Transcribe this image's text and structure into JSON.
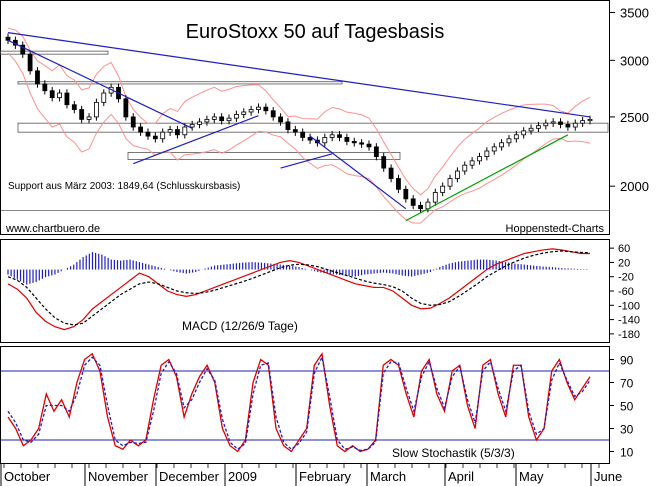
{
  "chart_data": [
    {
      "type": "candlestick",
      "title": "EuroStoxx 50 auf Tagesbasis",
      "watermark_left": "www.chartbuero.de",
      "watermark_right": "Hoppenstedt-Charts",
      "support_note": "Support aus März 2003: 1849,64 (Schlusskursbasis)",
      "support_level": 1849.64,
      "y_ticks": [
        2000,
        2500,
        3000,
        3500
      ],
      "y_tick_labels": [
        "2000",
        "2500",
        "3000",
        "3500"
      ],
      "ylim": [
        1720,
        3620
      ],
      "log_scale": true,
      "series_close_approx": [
        3200,
        3150,
        3060,
        2900,
        2780,
        2720,
        2660,
        2700,
        2600,
        2560,
        2480,
        2500,
        2620,
        2700,
        2750,
        2650,
        2500,
        2420,
        2380,
        2350,
        2330,
        2380,
        2400,
        2360,
        2420,
        2440,
        2460,
        2480,
        2500,
        2470,
        2490,
        2520,
        2540,
        2560,
        2580,
        2550,
        2500,
        2460,
        2400,
        2380,
        2340,
        2320,
        2300,
        2340,
        2360,
        2340,
        2310,
        2300,
        2290,
        2270,
        2200,
        2120,
        2050,
        1980,
        1920,
        1880,
        1860,
        1900,
        1960,
        2000,
        2050,
        2100,
        2140,
        2170,
        2200,
        2240,
        2270,
        2300,
        2330,
        2360,
        2390,
        2410,
        2430,
        2450,
        2460,
        2440,
        2420,
        2450,
        2470,
        2480
      ],
      "trendlines": [
        {
          "from": [
            0,
            3280
          ],
          "to": [
            79,
            2500
          ],
          "color": "#1f1fbf"
        },
        {
          "from": [
            0,
            3200
          ],
          "to": [
            25,
            2410
          ],
          "color": "#1f1fbf"
        },
        {
          "from": [
            17,
            2150
          ],
          "to": [
            34,
            2510
          ],
          "color": "#1f1fbf"
        },
        {
          "from": [
            37,
            2120
          ],
          "to": [
            44,
            2220
          ],
          "color": "#1f1fbf"
        },
        {
          "from": [
            41,
            2350
          ],
          "to": [
            54,
            1860
          ],
          "color": "#1f1fbf"
        },
        {
          "from": [
            54,
            1790
          ],
          "to": [
            76,
            2360
          ],
          "color": "#00a000"
        }
      ]
    },
    {
      "type": "line",
      "title": "MACD (12/26/9 Tage)",
      "y_ticks": [
        60,
        20,
        -20,
        -60,
        -100,
        -140,
        -180
      ],
      "y_tick_labels": [
        "60",
        "20",
        "-20",
        "-60",
        "-100",
        "-140",
        "-180"
      ],
      "ylim": [
        -200,
        80
      ],
      "series": [
        {
          "name": "MACD",
          "color": "#e00000",
          "values": [
            -40,
            -55,
            -80,
            -120,
            -145,
            -160,
            -168,
            -160,
            -140,
            -110,
            -90,
            -70,
            -50,
            -30,
            -10,
            -20,
            -40,
            -60,
            -70,
            -75,
            -70,
            -60,
            -50,
            -40,
            -30,
            -20,
            -10,
            0,
            10,
            20,
            25,
            20,
            10,
            0,
            -10,
            -20,
            -30,
            -40,
            -45,
            -50,
            -50,
            -60,
            -80,
            -100,
            -110,
            -108,
            -95,
            -80,
            -60,
            -40,
            -20,
            0,
            15,
            25,
            35,
            45,
            50,
            55,
            58,
            55,
            50,
            45,
            45
          ]
        },
        {
          "name": "Signal",
          "color": "#000000",
          "values": [
            -20,
            -30,
            -50,
            -80,
            -110,
            -135,
            -150,
            -155,
            -150,
            -130,
            -110,
            -90,
            -70,
            -55,
            -40,
            -35,
            -40,
            -50,
            -60,
            -65,
            -67,
            -64,
            -58,
            -50,
            -42,
            -34,
            -25,
            -15,
            -5,
            5,
            12,
            15,
            13,
            8,
            0,
            -8,
            -16,
            -24,
            -32,
            -38,
            -42,
            -48,
            -60,
            -80,
            -95,
            -100,
            -98,
            -90,
            -75,
            -58,
            -40,
            -20,
            -5,
            10,
            22,
            32,
            40,
            46,
            50,
            52,
            50,
            48,
            47
          ]
        },
        {
          "name": "Histogram",
          "color": "#1f1fbf",
          "values": [
            -10,
            -20,
            -30,
            -25,
            -15,
            -10,
            0,
            10,
            25,
            35,
            30,
            20,
            18,
            20,
            15,
            10,
            5,
            0,
            -5,
            -8,
            -5,
            2,
            8,
            10,
            12,
            14,
            15,
            14,
            12,
            10,
            8,
            5,
            0,
            -5,
            -8,
            -10,
            -12,
            -14,
            -10,
            -8,
            -6,
            -8,
            -12,
            -14,
            -10,
            -5,
            5,
            12,
            16,
            18,
            20,
            20,
            18,
            15,
            12,
            10,
            8,
            6,
            5,
            3,
            2,
            1,
            1
          ]
        }
      ]
    },
    {
      "type": "line",
      "title": "Slow Stochastik (5/3/3)",
      "y_ticks": [
        90,
        70,
        50,
        30,
        10
      ],
      "y_tick_labels": [
        "90",
        "70",
        "50",
        "30",
        "10"
      ],
      "ylim": [
        0,
        100
      ],
      "reference_lines": [
        80,
        20
      ],
      "series": [
        {
          "name": "%K",
          "color": "#e00000",
          "values": [
            40,
            30,
            15,
            20,
            30,
            60,
            45,
            55,
            40,
            70,
            90,
            95,
            80,
            40,
            15,
            12,
            20,
            15,
            20,
            55,
            85,
            90,
            75,
            40,
            60,
            75,
            85,
            70,
            30,
            15,
            10,
            20,
            70,
            90,
            85,
            30,
            15,
            10,
            20,
            30,
            85,
            95,
            50,
            15,
            10,
            15,
            10,
            12,
            20,
            85,
            90,
            85,
            60,
            40,
            80,
            90,
            60,
            45,
            80,
            85,
            50,
            30,
            85,
            90,
            60,
            40,
            85,
            85,
            40,
            20,
            30,
            80,
            90,
            70,
            55,
            65,
            75
          ]
        },
        {
          "name": "%D",
          "color": "#1f1fbf",
          "values": [
            45,
            35,
            20,
            18,
            25,
            50,
            50,
            50,
            45,
            60,
            85,
            92,
            85,
            50,
            20,
            15,
            18,
            17,
            18,
            45,
            78,
            88,
            78,
            48,
            55,
            70,
            82,
            72,
            38,
            18,
            12,
            17,
            60,
            85,
            87,
            40,
            18,
            12,
            17,
            27,
            78,
            92,
            58,
            20,
            12,
            14,
            11,
            12,
            18,
            78,
            88,
            87,
            65,
            45,
            75,
            88,
            65,
            48,
            75,
            84,
            55,
            35,
            80,
            88,
            65,
            45,
            80,
            85,
            45,
            25,
            30,
            72,
            87,
            72,
            58,
            62,
            72
          ]
        }
      ]
    }
  ],
  "x_axis": {
    "month_labels": [
      "October",
      "November",
      "December",
      "2009",
      "February",
      "March",
      "April",
      "May",
      "June"
    ],
    "month_starts": [
      0,
      84,
      155,
      224,
      295,
      366,
      444,
      515,
      590
    ]
  }
}
